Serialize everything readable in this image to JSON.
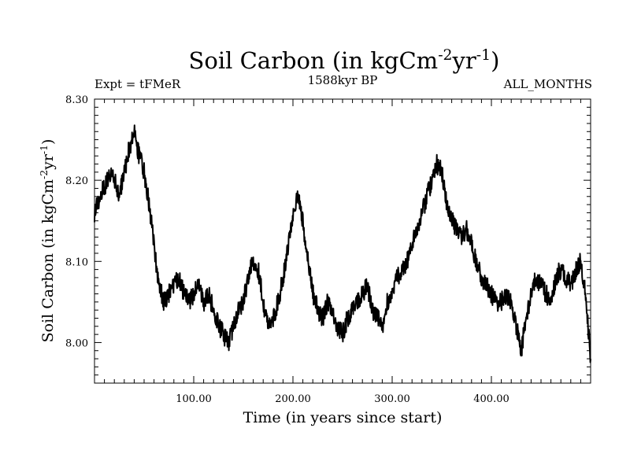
{
  "chart_data": {
    "type": "line",
    "title": "Soil Carbon (in kgCm",
    "title_exp1": "-2",
    "title_mid": "yr",
    "title_exp2": "-1",
    "title_end": ")",
    "subtitle_left": "Expt = tFMeR",
    "subtitle_center": "1588kyr BP",
    "subtitle_right": "ALL_MONTHS",
    "xlabel": "Time (in years since start)",
    "ylabel": "Soil Carbon (in kgCm",
    "ylabel_exp1": "-2",
    "ylabel_mid": "yr",
    "ylabel_exp2": "-1",
    "ylabel_end": ")",
    "xlim": [
      0,
      500
    ],
    "ylim": [
      7.95,
      8.3
    ],
    "xticks": [
      100,
      200,
      300,
      400
    ],
    "xtick_labels": [
      "100.00",
      "200.00",
      "300.00",
      "400.00"
    ],
    "yticks": [
      8.0,
      8.1,
      8.2,
      8.3
    ],
    "ytick_labels": [
      "8.00",
      "8.10",
      "8.20",
      "8.30"
    ],
    "line_color": "#000000",
    "series": [
      {
        "name": "Soil Carbon",
        "x": [
          0,
          5,
          10,
          15,
          20,
          25,
          30,
          35,
          40,
          45,
          50,
          55,
          60,
          65,
          70,
          75,
          80,
          85,
          90,
          95,
          100,
          105,
          110,
          115,
          120,
          125,
          130,
          135,
          140,
          145,
          150,
          155,
          160,
          165,
          170,
          175,
          180,
          185,
          190,
          195,
          200,
          205,
          210,
          215,
          220,
          225,
          230,
          235,
          240,
          245,
          250,
          255,
          260,
          265,
          270,
          275,
          280,
          285,
          290,
          295,
          300,
          305,
          310,
          315,
          320,
          325,
          330,
          335,
          340,
          345,
          350,
          355,
          360,
          365,
          370,
          375,
          380,
          385,
          390,
          395,
          400,
          405,
          410,
          415,
          420,
          425,
          430,
          435,
          440,
          445,
          450,
          455,
          460,
          465,
          470,
          475,
          480,
          485,
          490,
          495,
          500
        ],
        "y": [
          8.16,
          8.18,
          8.19,
          8.21,
          8.2,
          8.18,
          8.21,
          8.24,
          8.26,
          8.23,
          8.21,
          8.17,
          8.12,
          8.07,
          8.05,
          8.06,
          8.07,
          8.08,
          8.06,
          8.05,
          8.06,
          8.07,
          8.05,
          8.06,
          8.04,
          8.02,
          8.01,
          8.0,
          8.02,
          8.04,
          8.05,
          8.08,
          8.1,
          8.09,
          8.05,
          8.02,
          8.03,
          8.05,
          8.08,
          8.12,
          8.16,
          8.18,
          8.15,
          8.1,
          8.06,
          8.04,
          8.03,
          8.05,
          8.04,
          8.02,
          8.01,
          8.03,
          8.04,
          8.05,
          8.06,
          8.07,
          8.04,
          8.03,
          8.02,
          8.05,
          8.06,
          8.08,
          8.09,
          8.1,
          8.12,
          8.14,
          8.16,
          8.18,
          8.2,
          8.22,
          8.21,
          8.17,
          8.15,
          8.14,
          8.13,
          8.14,
          8.12,
          8.1,
          8.08,
          8.07,
          8.06,
          8.05,
          8.05,
          8.06,
          8.05,
          8.02,
          7.99,
          8.03,
          8.06,
          8.08,
          8.07,
          8.06,
          8.05,
          8.08,
          8.09,
          8.08,
          8.07,
          8.09,
          8.1,
          8.06,
          7.98
        ]
      }
    ]
  }
}
